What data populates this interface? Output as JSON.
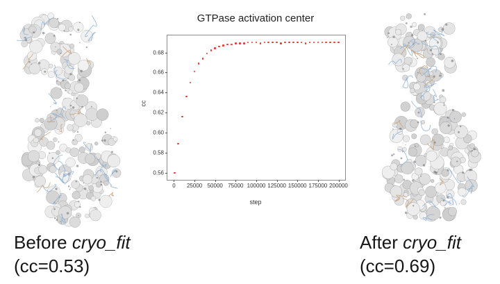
{
  "chart_data": {
    "type": "scatter",
    "title": "GTPase activation center",
    "xlabel": "step",
    "ylabel": "cc",
    "xlim": [
      -8000,
      208000
    ],
    "ylim": [
      0.553,
      0.697
    ],
    "xticks": [
      0,
      25000,
      50000,
      75000,
      100000,
      125000,
      150000,
      175000,
      200000
    ],
    "xtick_labels": [
      "0",
      "25000",
      "50000",
      "75000",
      "100000",
      "125000",
      "150000",
      "175000",
      "200000"
    ],
    "yticks": [
      0.56,
      0.58,
      0.6,
      0.62,
      0.64,
      0.66,
      0.68
    ],
    "ytick_labels": [
      "0.56",
      "0.58",
      "0.60",
      "0.62",
      "0.64",
      "0.66",
      "0.68"
    ],
    "marker_color": "#e0382e",
    "grid": false,
    "legend": "none",
    "series": [
      {
        "name": "cc",
        "x": [
          1000,
          5000,
          10000,
          15000,
          20000,
          25000,
          30000,
          35000,
          40000,
          45000,
          50000,
          55000,
          60000,
          65000,
          70000,
          75000,
          80000,
          85000,
          90000,
          95000,
          100000,
          105000,
          110000,
          115000,
          120000,
          125000,
          130000,
          135000,
          140000,
          145000,
          150000,
          155000,
          160000,
          165000,
          170000,
          175000,
          180000,
          185000,
          190000,
          195000,
          200000
        ],
        "y": [
          0.56,
          0.589,
          0.616,
          0.636,
          0.65,
          0.661,
          0.669,
          0.674,
          0.679,
          0.682,
          0.684,
          0.686,
          0.687,
          0.688,
          0.688,
          0.689,
          0.689,
          0.689,
          0.69,
          0.69,
          0.69,
          0.689,
          0.69,
          0.69,
          0.69,
          0.69,
          0.689,
          0.69,
          0.69,
          0.69,
          0.69,
          0.69,
          0.689,
          0.69,
          0.69,
          0.69,
          0.69,
          0.69,
          0.69,
          0.69,
          0.69
        ]
      }
    ]
  },
  "captions": {
    "before_prefix": "Before ",
    "after_prefix": "After ",
    "tool_name": "cryo_fit",
    "before_cc": "(cc=0.53)",
    "after_cc": "(cc=0.69)"
  }
}
